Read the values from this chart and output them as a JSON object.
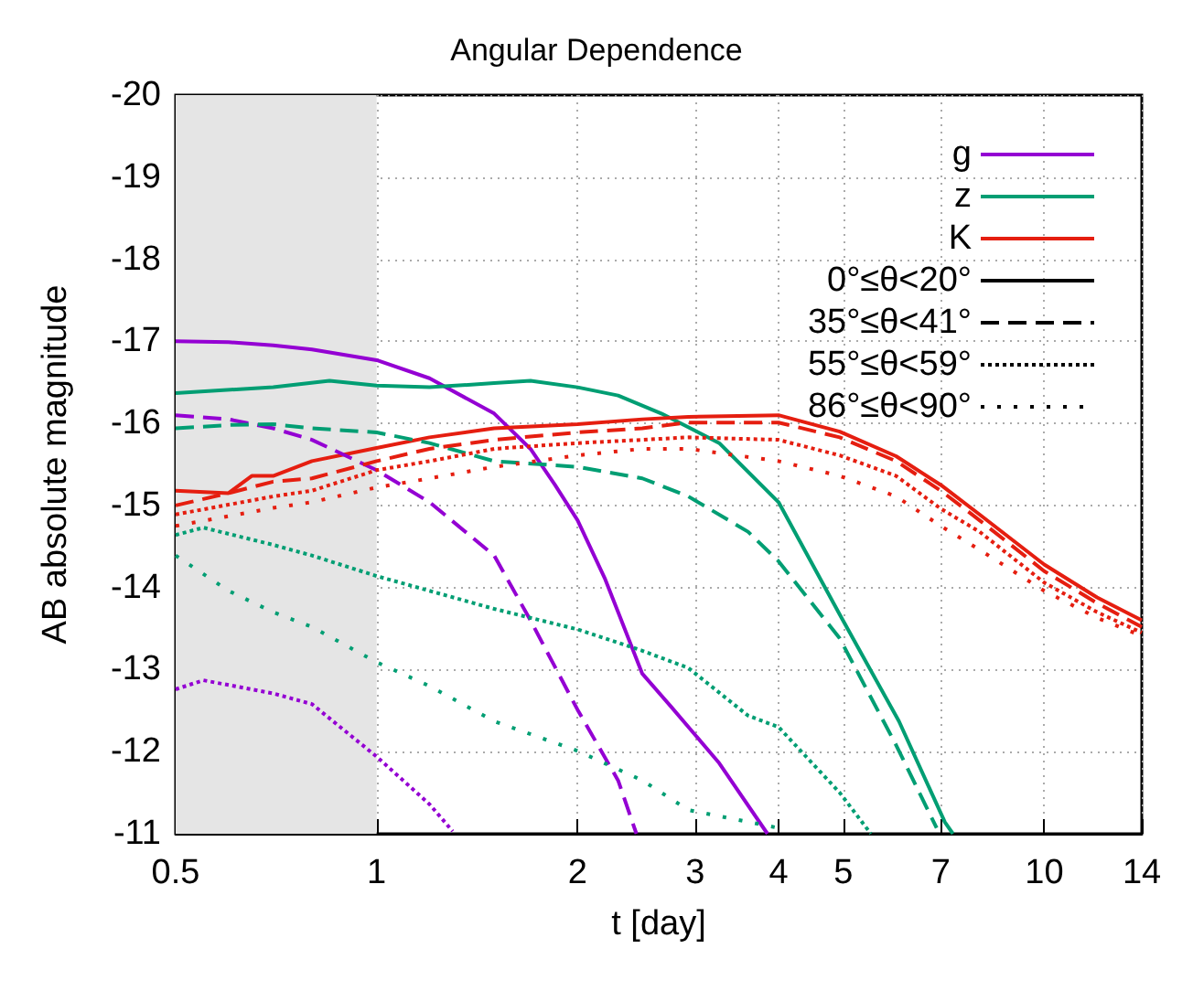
{
  "chart_data": {
    "type": "line",
    "title": "Angular Dependence",
    "xlabel": "t [day]",
    "ylabel": "AB absolute magnitude",
    "log": "x",
    "grid": true,
    "legend": "top right",
    "marker": "none",
    "xlim": [
      0.5,
      14
    ],
    "xticks": [
      0.5,
      1,
      2,
      3,
      4,
      5,
      7,
      10,
      14
    ],
    "ylim": [
      -11,
      -20
    ],
    "yticks": [
      -20,
      -19,
      -18,
      -17,
      -16,
      -15,
      -14,
      -13,
      -12,
      -11
    ],
    "bands": [
      {
        "axis": "x",
        "from": 0.5,
        "to": 1,
        "color": "#e5e5e5"
      }
    ],
    "series": [
      {
        "name": "g",
        "color": "#9400d3",
        "line_style": "solid",
        "x": [
          0.5,
          0.6,
          0.7,
          0.8,
          1,
          1.2,
          1.5,
          1.7,
          1.85,
          2,
          2.2,
          2.3,
          2.5,
          2.76,
          3.26,
          3.85
        ],
        "values": [
          -17.0,
          -16.99,
          -16.95,
          -16.9,
          -16.77,
          -16.55,
          -16.12,
          -15.69,
          -15.25,
          -14.82,
          -14.1,
          -13.7,
          -12.95,
          -12.55,
          -11.86,
          -11.0
        ]
      },
      {
        "name": "z",
        "color": "#009e73",
        "line_style": "solid",
        "x": [
          0.5,
          0.7,
          0.85,
          1,
          1.2,
          1.5,
          1.7,
          2,
          2.3,
          2.67,
          3.26,
          4,
          4.94,
          6.06,
          7.1,
          7.3
        ],
        "values": [
          -16.37,
          -16.44,
          -16.52,
          -16.46,
          -16.44,
          -16.49,
          -16.52,
          -16.44,
          -16.34,
          -16.12,
          -15.76,
          -15.04,
          -13.67,
          -12.37,
          -11.14,
          -11.0
        ]
      },
      {
        "name": "K",
        "color": "#e51e10",
        "line_style": "solid",
        "x": [
          0.5,
          0.6,
          0.65,
          0.7,
          0.8,
          1,
          1.2,
          1.5,
          2,
          2.5,
          2.93,
          4,
          4.94,
          6,
          7,
          8,
          10,
          12,
          14
        ],
        "values": [
          -15.18,
          -15.15,
          -15.36,
          -15.36,
          -15.54,
          -15.7,
          -15.83,
          -15.94,
          -15.99,
          -16.05,
          -16.08,
          -16.1,
          -15.9,
          -15.6,
          -15.25,
          -14.89,
          -14.28,
          -13.88,
          -13.6
        ]
      },
      {
        "color": "#9400d3",
        "line_style": "dashed",
        "x": [
          0.5,
          0.6,
          0.7,
          0.8,
          1,
          1.2,
          1.5,
          1.7,
          2,
          2.3,
          2.45
        ],
        "values": [
          -16.1,
          -16.05,
          -15.94,
          -15.8,
          -15.43,
          -15.04,
          -14.39,
          -13.6,
          -12.51,
          -11.65,
          -11.0
        ]
      },
      {
        "color": "#009e73",
        "line_style": "dashed",
        "x": [
          0.5,
          0.6,
          0.7,
          0.8,
          1,
          1.2,
          1.5,
          2,
          2.5,
          2.93,
          3.6,
          4,
          4.94,
          6,
          6.9
        ],
        "values": [
          -15.94,
          -15.98,
          -15.99,
          -15.94,
          -15.89,
          -15.76,
          -15.54,
          -15.47,
          -15.33,
          -15.11,
          -14.68,
          -14.32,
          -13.38,
          -12.08,
          -11.07
        ]
      },
      {
        "color": "#e51e10",
        "line_style": "dashed",
        "x": [
          0.5,
          0.6,
          0.7,
          0.8,
          1,
          1.2,
          1.5,
          2,
          2.5,
          2.93,
          4,
          4.94,
          6,
          7,
          8,
          10,
          12,
          14
        ],
        "values": [
          -15.0,
          -15.15,
          -15.29,
          -15.33,
          -15.54,
          -15.69,
          -15.8,
          -15.89,
          -15.94,
          -16.01,
          -16.01,
          -15.83,
          -15.54,
          -15.18,
          -14.82,
          -14.2,
          -13.81,
          -13.52
        ]
      },
      {
        "color": "#9400d3",
        "line_style": "dotted",
        "x": [
          0.5,
          0.55,
          0.7,
          0.8,
          1,
          1.2,
          1.3
        ],
        "values": [
          -12.76,
          -12.87,
          -12.71,
          -12.58,
          -11.94,
          -11.36,
          -11.03
        ]
      },
      {
        "color": "#009e73",
        "line_style": "dotted",
        "x": [
          0.5,
          0.55,
          0.7,
          0.8,
          1,
          1.2,
          1.5,
          2,
          2.5,
          2.93,
          3.6,
          4,
          4.94,
          5.5
        ],
        "values": [
          -14.64,
          -14.73,
          -14.52,
          -14.39,
          -14.14,
          -13.96,
          -13.74,
          -13.49,
          -13.23,
          -13.02,
          -12.44,
          -12.3,
          -11.5,
          -11.0
        ]
      },
      {
        "color": "#e51e10",
        "line_style": "dotted",
        "x": [
          0.5,
          0.7,
          0.8,
          1,
          1.2,
          1.5,
          2,
          2.5,
          2.93,
          4,
          4.94,
          6,
          7,
          8,
          10,
          12,
          14
        ],
        "values": [
          -14.89,
          -15.11,
          -15.18,
          -15.43,
          -15.54,
          -15.69,
          -15.76,
          -15.8,
          -15.83,
          -15.8,
          -15.61,
          -15.36,
          -14.96,
          -14.68,
          -14.06,
          -13.7,
          -13.45
        ]
      },
      {
        "color": "#009e73",
        "line_style": "sparse",
        "x": [
          0.5,
          0.6,
          0.7,
          0.8,
          1,
          1.2,
          1.5,
          2,
          2.5,
          2.93,
          4
        ],
        "values": [
          -14.39,
          -13.96,
          -13.7,
          -13.52,
          -13.09,
          -12.8,
          -12.37,
          -12.01,
          -11.65,
          -11.29,
          -11.07
        ]
      },
      {
        "color": "#e51e10",
        "line_style": "sparse",
        "x": [
          0.5,
          0.7,
          0.8,
          1,
          1.2,
          1.5,
          2,
          2.5,
          2.93,
          4,
          4.94,
          6,
          7,
          8,
          10,
          12,
          14
        ],
        "values": [
          -14.75,
          -14.97,
          -15.04,
          -15.22,
          -15.33,
          -15.47,
          -15.61,
          -15.69,
          -15.69,
          -15.54,
          -15.36,
          -15.11,
          -14.75,
          -14.46,
          -13.96,
          -13.63,
          -13.41
        ]
      },
      {
        "name": "0°≤θ<20°",
        "color": "#000000",
        "line_style": "solid"
      },
      {
        "name": "35°≤θ<41°",
        "color": "#000000",
        "line_style": "dashed"
      },
      {
        "name": "55°≤θ<59°",
        "color": "#000000",
        "line_style": "dotted"
      },
      {
        "name": "86°≤θ<90°",
        "color": "#000000",
        "line_style": "sparse"
      }
    ]
  }
}
